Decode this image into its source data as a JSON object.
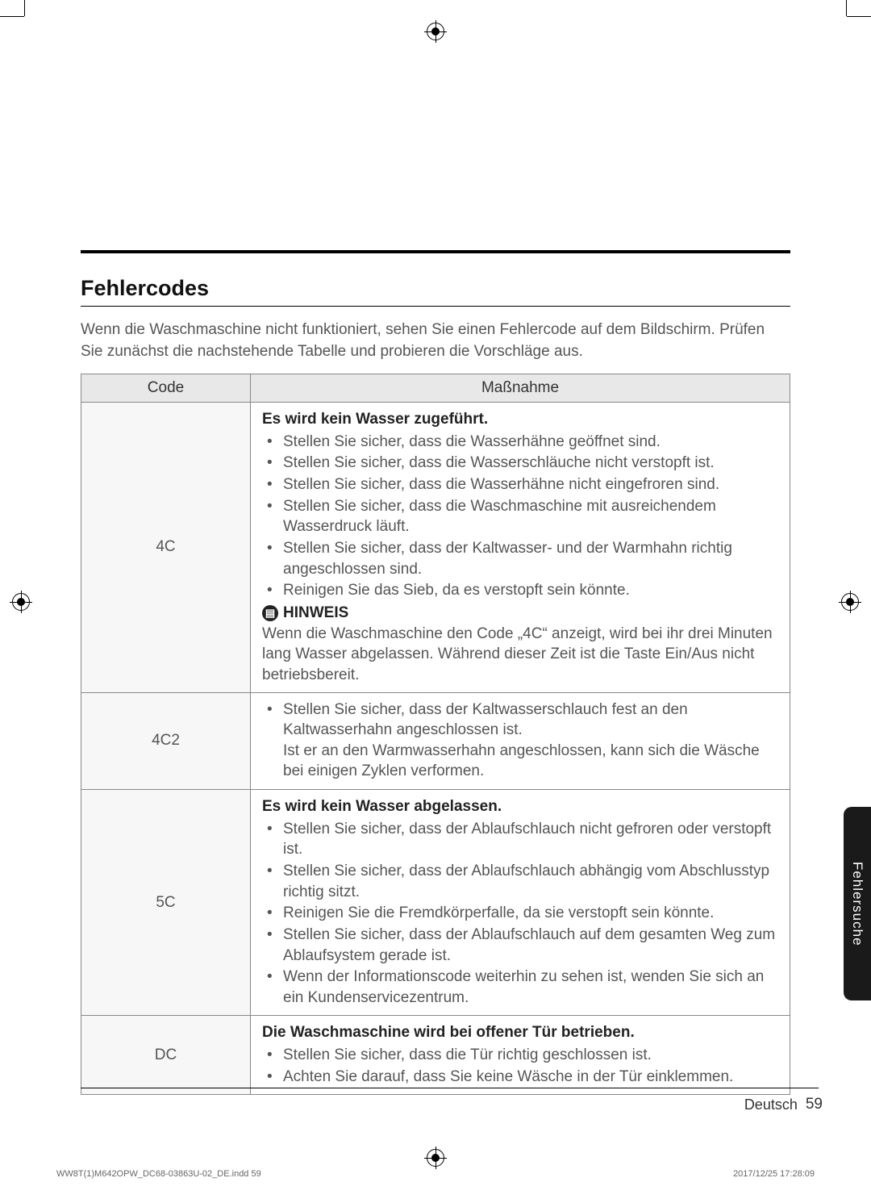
{
  "section_title": "Fehlercodes",
  "intro": "Wenn die Waschmaschine nicht funktioniert, sehen Sie einen Fehlercode auf dem Bildschirm. Prüfen Sie zunächst die nachstehende Tabelle und probieren die Vorschläge aus.",
  "table": {
    "headers": {
      "code": "Code",
      "action": "Maßnahme"
    },
    "rows": [
      {
        "code": "4C",
        "heading": "Es wird kein Wasser zugeführt.",
        "bullets": [
          "Stellen Sie sicher, dass die Wasserhähne geöffnet sind.",
          "Stellen Sie sicher, dass die Wasserschläuche nicht verstopft ist.",
          "Stellen Sie sicher, dass die Wasserhähne nicht eingefroren sind.",
          "Stellen Sie sicher, dass die Waschmaschine mit ausreichendem Wasserdruck läuft.",
          "Stellen Sie sicher, dass der Kaltwasser- und der Warmhahn richtig angeschlossen sind.",
          "Reinigen Sie das Sieb, da es verstopft sein könnte."
        ],
        "note_label": "HINWEIS",
        "note_text": "Wenn die Waschmaschine den Code „4C“ anzeigt, wird bei ihr drei Minuten lang Wasser abgelassen. Während dieser Zeit ist die Taste Ein/Aus nicht betriebsbereit."
      },
      {
        "code": "4C2",
        "bullets": [
          "Stellen Sie sicher, dass der Kaltwasserschlauch fest an den Kaltwasserhahn angeschlossen ist.\nIst er an den Warmwasserhahn angeschlossen, kann sich die Wäsche bei einigen Zyklen verformen."
        ]
      },
      {
        "code": "5C",
        "heading": "Es wird kein Wasser abgelassen.",
        "bullets": [
          "Stellen Sie sicher, dass der Ablaufschlauch nicht gefroren oder verstopft ist.",
          "Stellen Sie sicher, dass der Ablaufschlauch abhängig vom Abschlusstyp richtig sitzt.",
          "Reinigen Sie die Fremdkörperfalle, da sie verstopft sein könnte.",
          "Stellen Sie sicher, dass der Ablaufschlauch auf dem gesamten Weg zum Ablaufsystem gerade ist.",
          "Wenn der Informationscode weiterhin zu sehen ist, wenden Sie sich an ein Kundenservicezentrum."
        ]
      },
      {
        "code": "DC",
        "heading": "Die Waschmaschine wird bei offener Tür betrieben.",
        "bullets": [
          "Stellen Sie sicher, dass die Tür richtig geschlossen ist.",
          "Achten Sie darauf, dass Sie keine Wäsche in der Tür einklemmen."
        ]
      }
    ]
  },
  "side_tab": "Fehlersuche",
  "footer": {
    "lang": "Deutsch",
    "page": "59"
  },
  "print": {
    "file": "WW8T(1)M642OPW_DC68-03863U-02_DE.indd   59",
    "stamp": "2017/12/25   17:28:09"
  },
  "colors": {
    "text_body": "#555555",
    "text_heading": "#111111",
    "header_bg": "#e8e8e8",
    "code_bg": "#f7f7f7",
    "border": "#888888",
    "tab_bg": "#1a1a1a"
  }
}
